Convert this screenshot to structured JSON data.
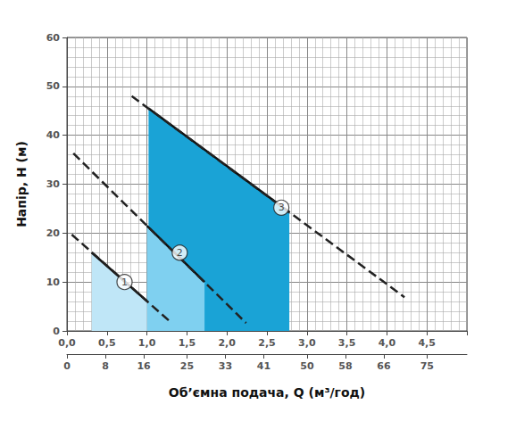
{
  "chart_data": {
    "type": "line",
    "x_label": "Об’ємна подача, Q (м³/год)",
    "y_label": "Напір, H (м)",
    "xlim": [
      0,
      5.0
    ],
    "xticks": [
      {
        "value": 0,
        "label": "0,0"
      },
      {
        "value": 0.5,
        "label": "0,5"
      },
      {
        "value": 1.0,
        "label": "1,0"
      },
      {
        "value": 1.5,
        "label": "1,5"
      },
      {
        "value": 2.0,
        "label": "2,0"
      },
      {
        "value": 2.5,
        "label": "2,5"
      },
      {
        "value": 3.0,
        "label": "3,0"
      },
      {
        "value": 3.5,
        "label": "3,5"
      },
      {
        "value": 4.0,
        "label": "4,0"
      },
      {
        "value": 4.5,
        "label": "4,5"
      }
    ],
    "x2lim": [
      0,
      83.3
    ],
    "x2ticks": [
      0,
      8,
      16,
      25,
      33,
      41,
      50,
      58,
      66,
      75
    ],
    "ylim": [
      0,
      60
    ],
    "yticks": [
      0,
      10,
      20,
      30,
      40,
      50,
      60
    ],
    "grid": true,
    "series": [
      {
        "type": "area",
        "color": "#1aa3d6",
        "x": [
          1.02,
          2.78
        ],
        "values": [
          45.5,
          24.3
        ]
      },
      {
        "type": "area",
        "color": "#7fd0f0",
        "x": [
          1.0,
          1.72
        ],
        "values": [
          21.5,
          10.0
        ]
      },
      {
        "type": "area",
        "color": "#bfe6f7",
        "x": [
          0.31,
          1.0
        ],
        "values": [
          16.0,
          6.1
        ]
      },
      {
        "type": "line",
        "line_style": "dashed",
        "color": "#222222",
        "x": [
          0.06,
          1.31
        ],
        "values": [
          19.7,
          1.6
        ]
      },
      {
        "type": "line",
        "line_style": "dashed",
        "color": "#222222",
        "x": [
          0.08,
          2.24
        ],
        "values": [
          36.3,
          1.6
        ]
      },
      {
        "type": "line",
        "line_style": "dashed",
        "color": "#222222",
        "x": [
          0.81,
          4.22
        ],
        "values": [
          48.0,
          6.9
        ]
      }
    ],
    "annotations": [
      {
        "text": "1",
        "x": 0.72,
        "y": 10.0
      },
      {
        "text": "2",
        "x": 1.41,
        "y": 16.0
      },
      {
        "text": "3",
        "x": 2.68,
        "y": 25.2
      }
    ]
  }
}
